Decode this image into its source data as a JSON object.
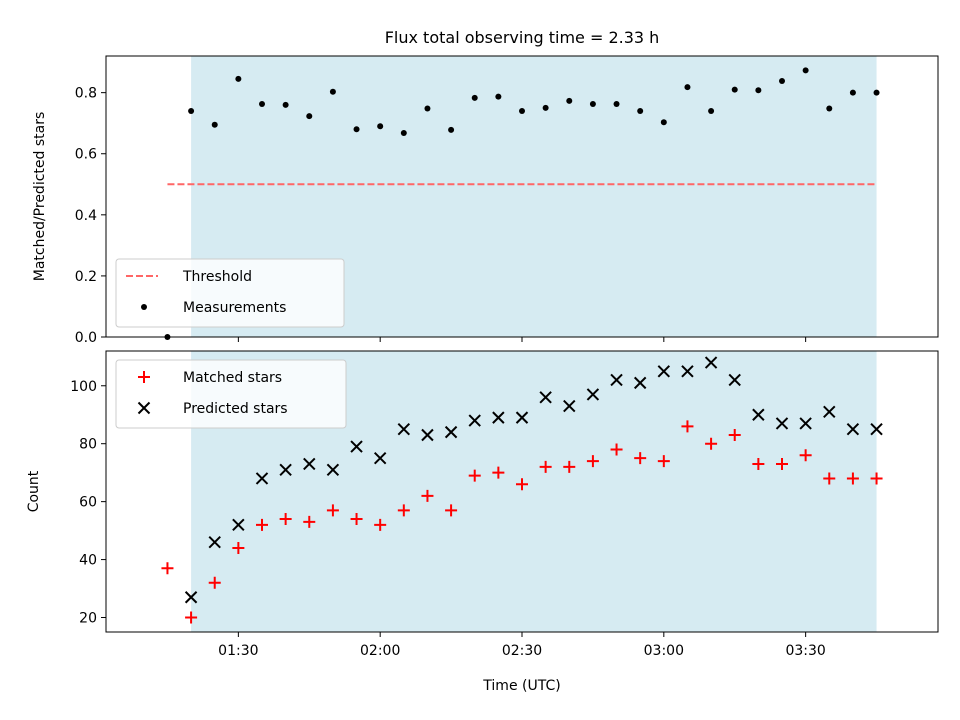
{
  "title": "Flux total observing time = 2.33 h",
  "colors": {
    "shade": "#add8e6",
    "threshold": "#ff6666",
    "measurements": "#000000",
    "matched": "#ff0000",
    "predicted": "#000000"
  },
  "chart_data": [
    {
      "type": "scatter",
      "ylabel": "Matched/Predicted stars",
      "ylim": [
        0,
        0.92
      ],
      "yticks": [
        "0.0",
        "0.2",
        "0.4",
        "0.6",
        "0.8"
      ],
      "ytick_values": [
        0,
        0.2,
        0.4,
        0.6,
        0.8
      ],
      "legend_position": "lower-left",
      "legend": [
        "Threshold",
        "Measurements"
      ],
      "series": [
        {
          "name": "Threshold",
          "style": "dashed-line",
          "x": [
            "01:15",
            "03:45"
          ],
          "y": [
            0.5,
            0.5
          ]
        },
        {
          "name": "Measurements",
          "style": "dot",
          "x": [
            "01:15",
            "01:20",
            "01:25",
            "01:30",
            "01:35",
            "01:40",
            "01:45",
            "01:50",
            "01:55",
            "02:00",
            "02:05",
            "02:10",
            "02:15",
            "02:20",
            "02:25",
            "02:30",
            "02:35",
            "02:40",
            "02:45",
            "02:50",
            "02:55",
            "03:00",
            "03:05",
            "03:10",
            "03:15",
            "03:20",
            "03:25",
            "03:30",
            "03:35",
            "03:40",
            "03:45"
          ],
          "y": [
            0.0,
            0.74,
            0.695,
            0.845,
            0.763,
            0.76,
            0.723,
            0.803,
            0.68,
            0.69,
            0.668,
            0.748,
            0.678,
            0.783,
            0.787,
            0.74,
            0.75,
            0.773,
            0.763,
            0.763,
            0.74,
            0.703,
            0.818,
            0.74,
            0.81,
            0.808,
            0.838,
            0.873,
            0.748,
            0.8,
            0.8
          ]
        }
      ]
    },
    {
      "type": "scatter",
      "ylabel": "Count",
      "xlabel": "Time (UTC)",
      "ylim": [
        15,
        112
      ],
      "yticks": [
        "20",
        "40",
        "60",
        "80",
        "100"
      ],
      "ytick_values": [
        20,
        40,
        60,
        80,
        100
      ],
      "xticks": [
        "01:30",
        "02:00",
        "02:30",
        "03:00",
        "03:30"
      ],
      "legend_position": "upper-left",
      "legend": [
        "Matched stars",
        "Predicted stars"
      ],
      "series": [
        {
          "name": "Matched stars",
          "style": "plus",
          "x": [
            "01:15",
            "01:20",
            "01:25",
            "01:30",
            "01:35",
            "01:40",
            "01:45",
            "01:50",
            "01:55",
            "02:00",
            "02:05",
            "02:10",
            "02:15",
            "02:20",
            "02:25",
            "02:30",
            "02:35",
            "02:40",
            "02:45",
            "02:50",
            "02:55",
            "03:00",
            "03:05",
            "03:10",
            "03:15",
            "03:20",
            "03:25",
            "03:30",
            "03:35",
            "03:40",
            "03:45"
          ],
          "y": [
            37,
            20,
            32,
            44,
            52,
            54,
            53,
            57,
            54,
            52,
            57,
            62,
            57,
            69,
            70,
            66,
            72,
            72,
            74,
            78,
            75,
            74,
            86,
            80,
            83,
            73,
            73,
            76,
            68,
            68,
            68
          ]
        },
        {
          "name": "Predicted stars",
          "style": "x",
          "x": [
            "01:20",
            "01:25",
            "01:30",
            "01:35",
            "01:40",
            "01:45",
            "01:50",
            "01:55",
            "02:00",
            "02:05",
            "02:10",
            "02:15",
            "02:20",
            "02:25",
            "02:30",
            "02:35",
            "02:40",
            "02:45",
            "02:50",
            "02:55",
            "03:00",
            "03:05",
            "03:10",
            "03:15",
            "03:20",
            "03:25",
            "03:30",
            "03:35",
            "03:40",
            "03:45"
          ],
          "y": [
            27,
            46,
            52,
            68,
            71,
            73,
            71,
            79,
            75,
            85,
            83,
            84,
            88,
            89,
            89,
            96,
            93,
            97,
            102,
            101,
            105,
            105,
            108,
            102,
            90,
            87,
            87,
            91,
            85,
            85
          ]
        }
      ]
    }
  ],
  "observing_window": [
    "01:20",
    "03:45"
  ]
}
